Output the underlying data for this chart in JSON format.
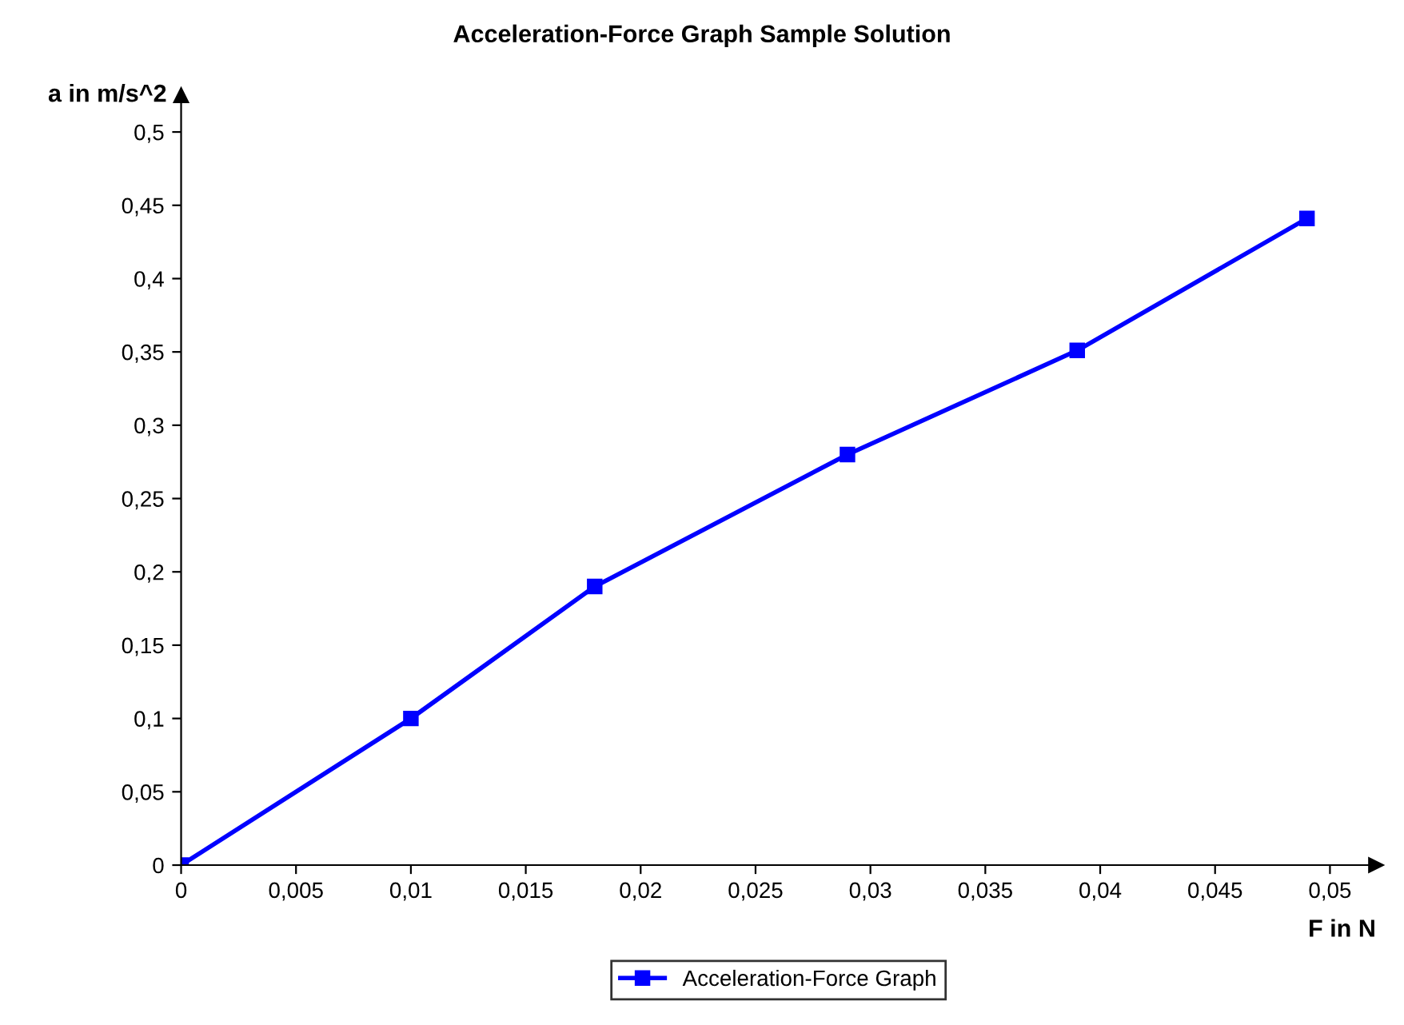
{
  "chart_data": {
    "type": "line",
    "title": "Acceleration-Force Graph Sample Solution",
    "xlabel": "F in N",
    "ylabel": "a in m/s^2",
    "x": [
      0,
      0.01,
      0.018,
      0.029,
      0.039,
      0.049
    ],
    "series": [
      {
        "name": "Acceleration-Force Graph",
        "color": "#0000ff",
        "values": [
          0,
          0.1,
          0.19,
          0.28,
          0.351,
          0.441
        ]
      }
    ],
    "xlim": [
      0,
      0.052
    ],
    "ylim": [
      0,
      0.525
    ],
    "xticks": [
      0,
      {
        "value": 0.005,
        "label": "0,005"
      },
      {
        "value": 0.01,
        "label": "0,01"
      },
      {
        "value": 0.015,
        "label": "0,015"
      },
      {
        "value": 0.02,
        "label": "0,02"
      },
      {
        "value": 0.025,
        "label": "0,025"
      },
      {
        "value": 0.03,
        "label": "0,03"
      },
      {
        "value": 0.035,
        "label": "0,035"
      },
      {
        "value": 0.04,
        "label": "0,04"
      },
      {
        "value": 0.045,
        "label": "0,045"
      },
      {
        "value": 0.05,
        "label": "0,05"
      }
    ],
    "yticks": [
      0,
      {
        "value": 0.05,
        "label": "0,05"
      },
      {
        "value": 0.1,
        "label": "0,1"
      },
      {
        "value": 0.15,
        "label": "0,15"
      },
      {
        "value": 0.2,
        "label": "0,2"
      },
      {
        "value": 0.25,
        "label": "0,25"
      },
      {
        "value": 0.3,
        "label": "0,3"
      },
      {
        "value": 0.35,
        "label": "0,35"
      },
      {
        "value": 0.4,
        "label": "0,4"
      },
      {
        "value": 0.45,
        "label": "0,45"
      },
      {
        "value": 0.5,
        "label": "0,5"
      }
    ],
    "grid": false,
    "legend": "bottom",
    "marker": "square",
    "line_style": "solid"
  }
}
